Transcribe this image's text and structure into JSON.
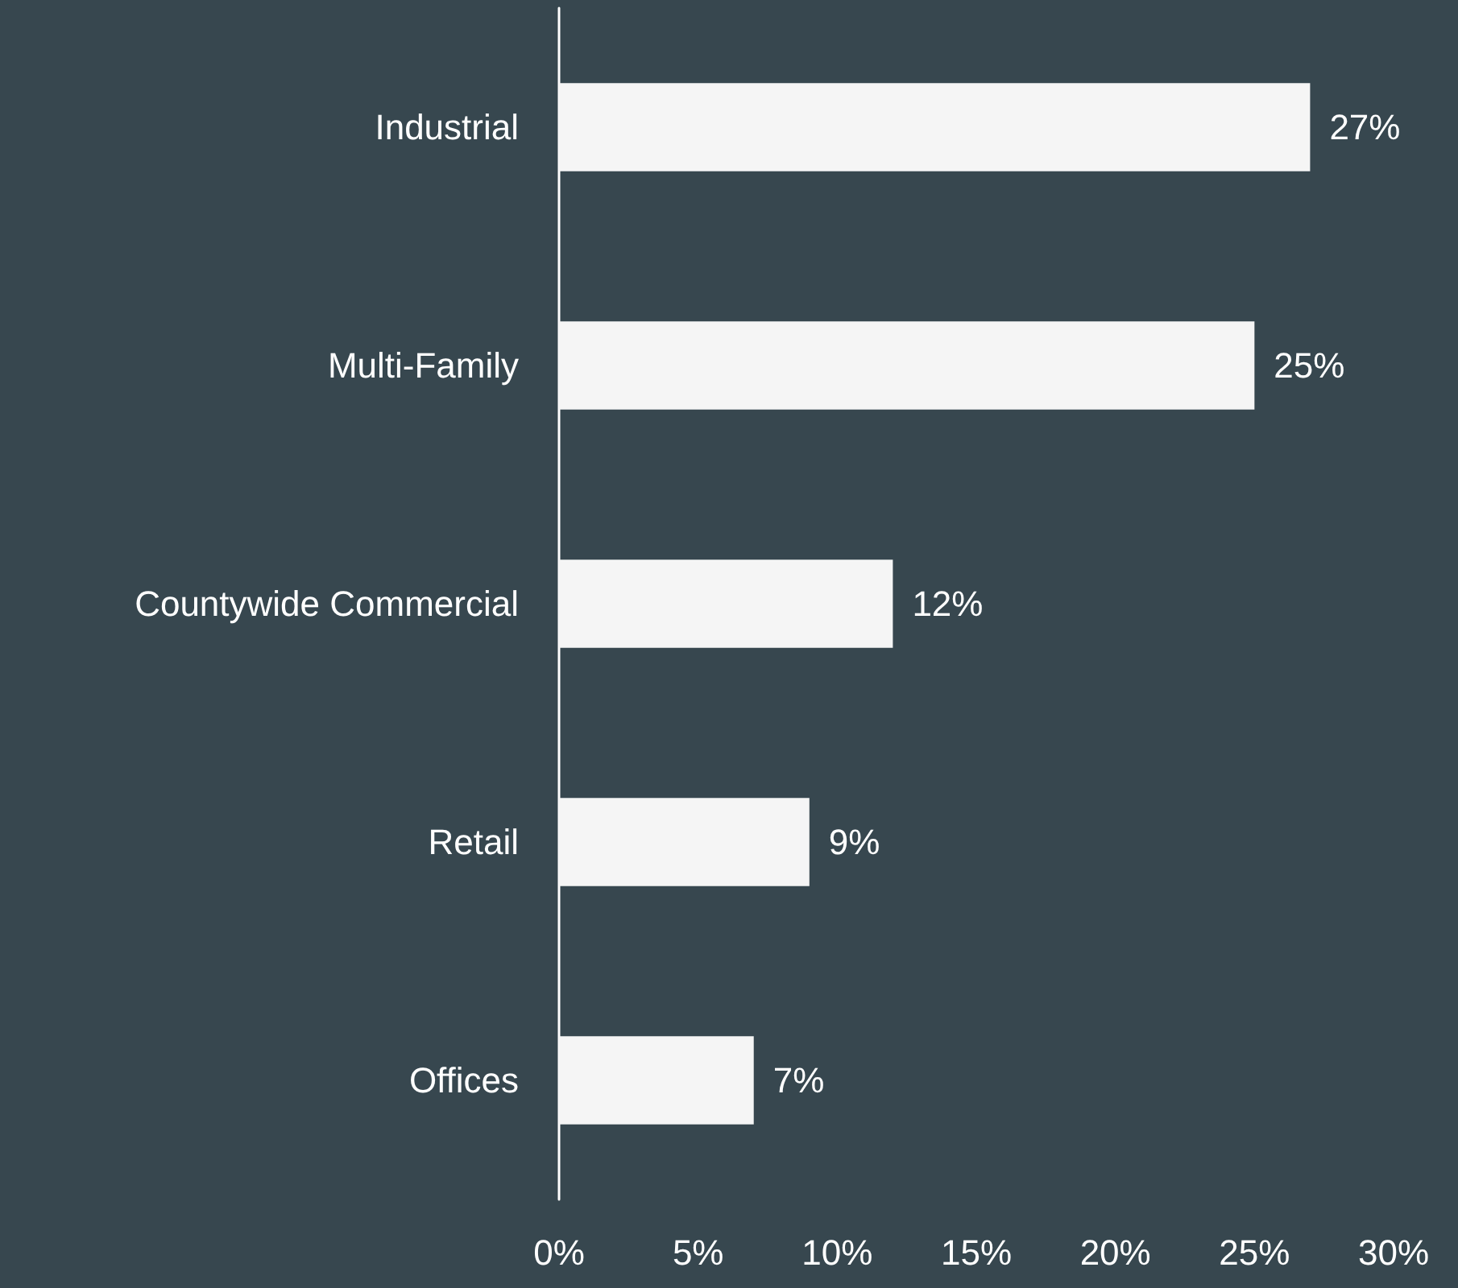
{
  "chart_data": {
    "type": "bar",
    "orientation": "horizontal",
    "categories": [
      "Industrial",
      "Multi-Family",
      "Countywide Commercial",
      "Retail",
      "Offices"
    ],
    "values": [
      27,
      25,
      12,
      9,
      7
    ],
    "value_labels": [
      "27%",
      "25%",
      "12%",
      "9%",
      "7%"
    ],
    "color": "#f5f5f5",
    "xlim": [
      0,
      30
    ],
    "xticks": [
      {
        "value": 0,
        "label": "0%"
      },
      {
        "value": 5,
        "label": "5%"
      },
      {
        "value": 10,
        "label": "10%"
      },
      {
        "value": 15,
        "label": "15%"
      },
      {
        "value": 20,
        "label": "20%"
      },
      {
        "value": 25,
        "label": "25%"
      },
      {
        "value": 30,
        "label": "30%"
      }
    ],
    "grid": false
  }
}
